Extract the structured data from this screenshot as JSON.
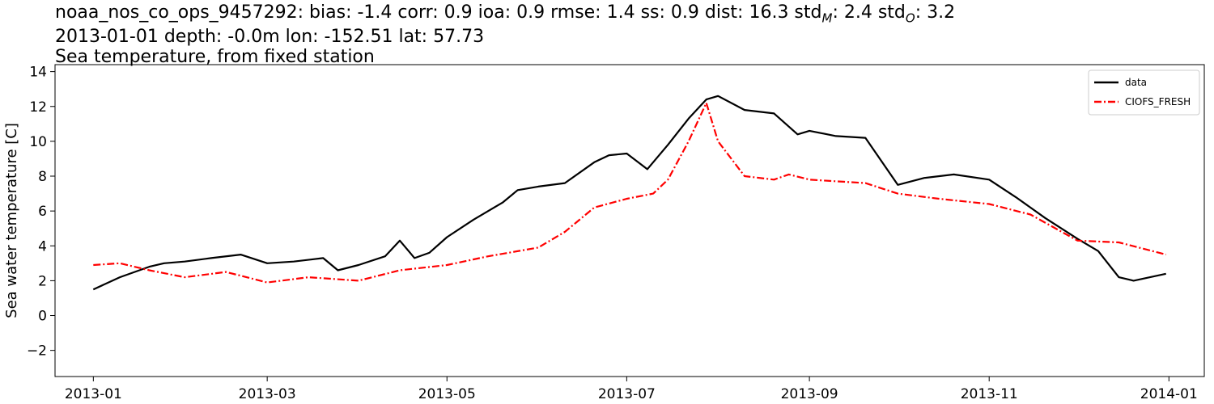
{
  "title": {
    "line1": "noaa_nos_co_ops_9457292: bias: -1.4  corr: 0.9  ioa: 0.9  rmse: 1.4  ss: 0.9  dist: 16.3  std",
    "line1_sub1": "M",
    "line1_mid": ": 2.4  std",
    "line1_sub2": "O",
    "line1_end": ": 3.2",
    "line2": "2013-01-01 depth: -0.0m lon: -152.51 lat: 57.73",
    "line3": "Sea temperature, from fixed station"
  },
  "chart_data": {
    "type": "line",
    "ylabel": "Sea water temperature [C]",
    "xlim": [
      "2012-12-19",
      "2014-01-13"
    ],
    "ylim": [
      -3.5,
      14.4
    ],
    "x_ticks": [
      "2013-01",
      "2013-03",
      "2013-05",
      "2013-07",
      "2013-09",
      "2013-11",
      "2014-01"
    ],
    "y_ticks": [
      -2,
      0,
      2,
      4,
      6,
      8,
      10,
      12,
      14
    ],
    "y_tick_labels": [
      "−2",
      "0",
      "2",
      "4",
      "6",
      "8",
      "10",
      "12",
      "14"
    ],
    "grid": false,
    "legend_position": "top-right",
    "series": [
      {
        "name": "data",
        "color": "#000000",
        "style": "solid",
        "x": [
          "2013-01-01",
          "2013-01-10",
          "2013-01-20",
          "2013-01-25",
          "2013-02-01",
          "2013-02-10",
          "2013-02-20",
          "2013-03-01",
          "2013-03-10",
          "2013-03-20",
          "2013-03-25",
          "2013-04-01",
          "2013-04-10",
          "2013-04-15",
          "2013-04-20",
          "2013-04-25",
          "2013-05-01",
          "2013-05-10",
          "2013-05-20",
          "2013-05-25",
          "2013-06-01",
          "2013-06-10",
          "2013-06-20",
          "2013-06-25",
          "2013-07-01",
          "2013-07-08",
          "2013-07-15",
          "2013-07-22",
          "2013-07-28",
          "2013-08-01",
          "2013-08-10",
          "2013-08-20",
          "2013-08-28",
          "2013-09-01",
          "2013-09-10",
          "2013-09-20",
          "2013-10-01",
          "2013-10-10",
          "2013-10-20",
          "2013-11-01",
          "2013-11-10",
          "2013-11-20",
          "2013-12-01",
          "2013-12-08",
          "2013-12-15",
          "2013-12-20",
          "2013-12-31"
        ],
        "y": [
          1.5,
          2.2,
          2.8,
          3.0,
          3.1,
          3.3,
          3.5,
          3.0,
          3.1,
          3.3,
          2.6,
          2.9,
          3.4,
          4.3,
          3.3,
          3.6,
          4.5,
          5.5,
          6.5,
          7.2,
          7.4,
          7.6,
          8.8,
          9.2,
          9.3,
          8.4,
          9.8,
          11.3,
          12.4,
          12.6,
          11.8,
          11.6,
          10.4,
          10.6,
          10.3,
          10.2,
          7.5,
          7.9,
          8.1,
          7.8,
          6.8,
          5.6,
          4.4,
          3.7,
          2.2,
          2.0,
          2.4
        ]
      },
      {
        "name": "CIOFS_FRESH",
        "color": "#ff0000",
        "style": "dashdot",
        "x": [
          "2013-01-01",
          "2013-01-10",
          "2013-01-20",
          "2013-02-01",
          "2013-02-15",
          "2013-03-01",
          "2013-03-15",
          "2013-04-01",
          "2013-04-15",
          "2013-05-01",
          "2013-05-15",
          "2013-06-01",
          "2013-06-10",
          "2013-06-20",
          "2013-07-01",
          "2013-07-10",
          "2013-07-15",
          "2013-07-22",
          "2013-07-28",
          "2013-08-01",
          "2013-08-10",
          "2013-08-20",
          "2013-08-25",
          "2013-09-01",
          "2013-09-20",
          "2013-10-01",
          "2013-10-15",
          "2013-11-01",
          "2013-11-15",
          "2013-12-01",
          "2013-12-15",
          "2013-12-31"
        ],
        "y": [
          2.9,
          3.0,
          2.6,
          2.2,
          2.5,
          1.9,
          2.2,
          2.0,
          2.6,
          2.9,
          3.4,
          3.9,
          4.8,
          6.2,
          6.7,
          7.0,
          7.8,
          10.0,
          12.2,
          10.0,
          8.0,
          7.8,
          8.1,
          7.8,
          7.6,
          7.0,
          6.7,
          6.4,
          5.8,
          4.3,
          4.2,
          3.5
        ]
      }
    ]
  }
}
